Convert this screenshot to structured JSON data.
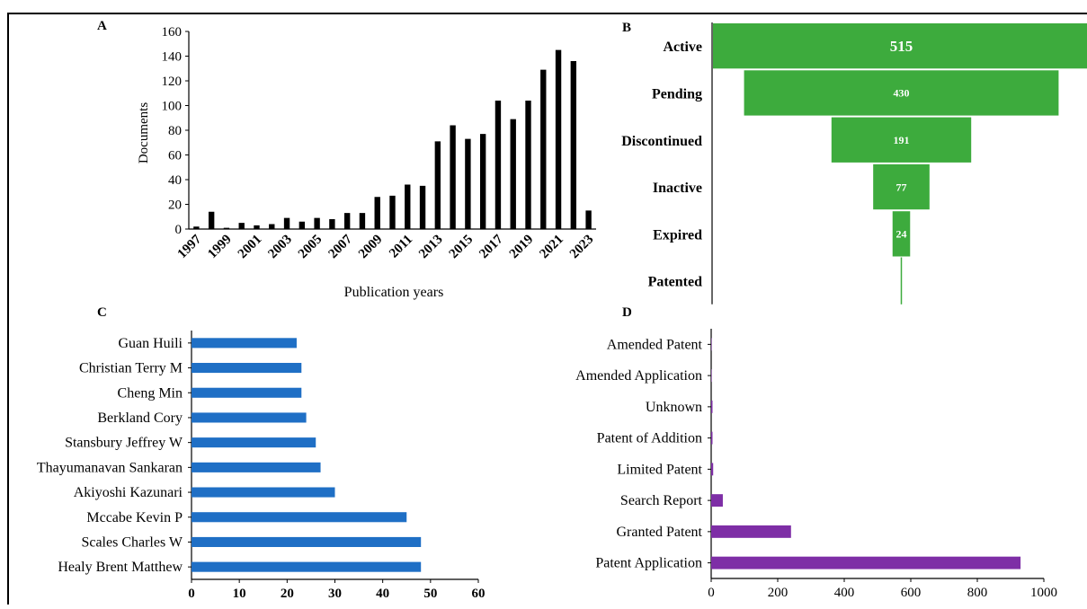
{
  "figure": {
    "panel_labels": [
      "A",
      "B",
      "C",
      "D"
    ]
  },
  "chart_data": [
    {
      "panel": "A",
      "type": "bar",
      "xlabel": "Publication years",
      "ylabel": "Documents",
      "ylim": [
        0,
        160
      ],
      "yticks": [
        0,
        20,
        40,
        60,
        80,
        100,
        120,
        140,
        160
      ],
      "xtick_labels": [
        "1997",
        "1999",
        "2001",
        "2003",
        "2005",
        "2007",
        "2009",
        "2011",
        "2013",
        "2015",
        "2017",
        "2019",
        "2021",
        "2023"
      ],
      "categories": [
        "1997",
        "1998",
        "1999",
        "2000",
        "2001",
        "2002",
        "2003",
        "2004",
        "2005",
        "2006",
        "2007",
        "2008",
        "2009",
        "2010",
        "2011",
        "2012",
        "2013",
        "2014",
        "2015",
        "2016",
        "2017",
        "2018",
        "2019",
        "2020",
        "2021",
        "2022",
        "2023"
      ],
      "values": [
        2,
        14,
        1,
        5,
        3,
        4,
        9,
        6,
        9,
        8,
        13,
        13,
        26,
        27,
        36,
        35,
        71,
        84,
        73,
        77,
        104,
        89,
        104,
        129,
        145,
        136,
        15
      ],
      "color": "#000000",
      "grid": false,
      "legend": "none"
    },
    {
      "panel": "B",
      "type": "bar",
      "subtype": "funnel",
      "categories": [
        "Active",
        "Pending",
        "Discontinued",
        "Inactive",
        "Expired",
        "Patented"
      ],
      "values": [
        515,
        430,
        191,
        77,
        24,
        1
      ],
      "data_labels": [
        "515",
        "430",
        "191",
        "77",
        "24",
        ""
      ],
      "color": "#3dab3d",
      "label_color": "#ffffff"
    },
    {
      "panel": "C",
      "type": "bar",
      "orientation": "horizontal",
      "categories": [
        "Guan Huili",
        "Christian Terry M",
        "Cheng Min",
        "Berkland Cory",
        "Stansbury Jeffrey W",
        "Thayumanavan Sankaran",
        "Akiyoshi Kazunari",
        "Mccabe Kevin P",
        "Scales Charles W",
        "Healy Brent Matthew"
      ],
      "values": [
        22,
        23,
        23,
        24,
        26,
        27,
        30,
        45,
        48,
        48
      ],
      "xlim": [
        0,
        60
      ],
      "xticks": [
        0,
        10,
        20,
        30,
        40,
        50,
        60
      ],
      "color": "#1f6fc5",
      "grid": false
    },
    {
      "panel": "D",
      "type": "bar",
      "orientation": "horizontal",
      "categories": [
        "Amended Patent",
        "Amended Application",
        "Unknown",
        "Patent of Addition",
        "Limited Patent",
        "Search Report",
        "Granted Patent",
        "Patent Application"
      ],
      "values": [
        1,
        1,
        4,
        4,
        6,
        35,
        240,
        930
      ],
      "xlim": [
        0,
        1000
      ],
      "xticks": [
        0,
        200,
        400,
        600,
        800,
        1000
      ],
      "color": "#7e2ea6",
      "grid": false
    }
  ]
}
